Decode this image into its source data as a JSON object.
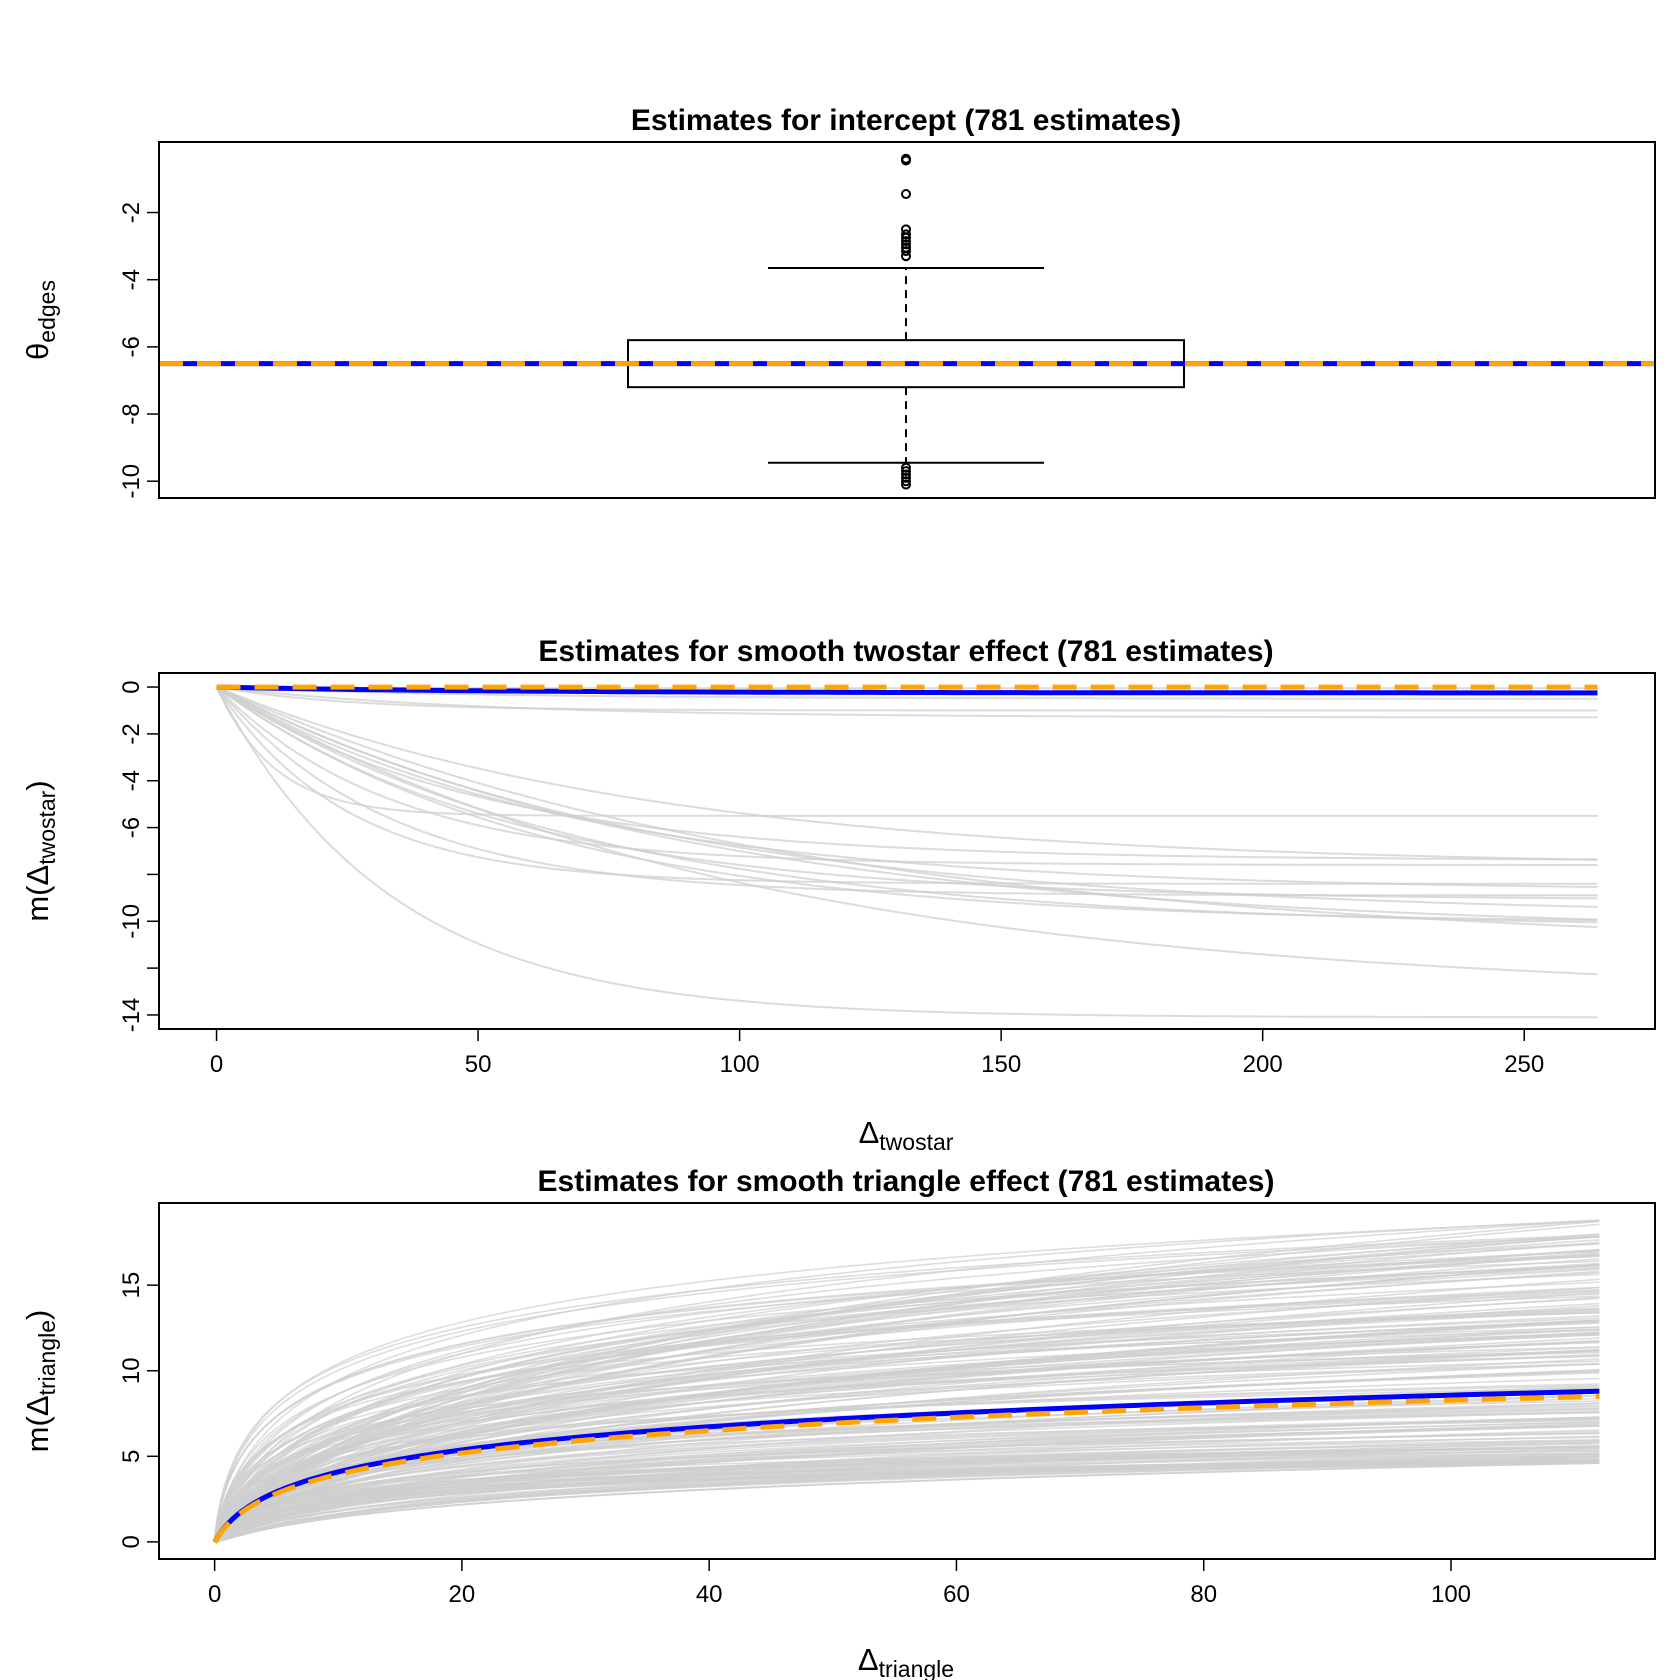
{
  "colors": {
    "mean_line": "#0000ff",
    "true_line": "#ffa500",
    "estimate_lines": "#cfcfcf",
    "box": "#000000"
  },
  "chart_data": [
    {
      "type": "box",
      "title": "Estimates for intercept (781 estimates)",
      "ylabel_main": "θ",
      "ylabel_sub": "edges",
      "ylim": [
        -10.5,
        0.1
      ],
      "yticks": [
        "-2",
        "-4",
        "-6",
        "-8",
        "-10"
      ],
      "box": {
        "whisker_low": -9.45,
        "q1": -7.2,
        "median": -6.5,
        "q3": -5.8,
        "whisker_high": -3.65,
        "outliers_high": [
          -0.4,
          -0.45,
          -1.45,
          -2.5,
          -2.65,
          -2.75,
          -2.85,
          -2.95,
          -3.05,
          -3.15,
          -3.3
        ],
        "outliers_low": [
          -9.6,
          -9.7,
          -9.8,
          -9.9,
          -10.0,
          -10.1
        ]
      },
      "mean_line": -6.5,
      "true_line": -6.5
    },
    {
      "type": "line",
      "title": "Estimates for smooth twostar effect (781 estimates)",
      "xlabel_main": "Δ",
      "xlabel_sub": "twostar",
      "ylabel_pre": "m(",
      "ylabel_main": "Δ",
      "ylabel_sub": "twostar",
      "ylabel_post": ")",
      "xlim": [
        -11,
        275
      ],
      "ylim": [
        -14.6,
        0.6
      ],
      "x_max": 264,
      "xticks": [
        "0",
        "50",
        "100",
        "150",
        "200",
        "250"
      ],
      "yticks": [
        "0",
        "-2",
        "-4",
        "-6",
        "",
        "-10",
        "",
        "-14"
      ],
      "curves_limits": [
        -0.05,
        -0.2,
        -0.5,
        -1.0,
        -1.3,
        -5.5,
        -7.4,
        -7.6,
        -7.7,
        -8.4,
        -8.7,
        -8.9,
        -9.1,
        -9.8,
        -10.1,
        -10.3,
        -10.5,
        -11.3,
        -13.2,
        -14.1
      ],
      "curves_rates": [
        0.03,
        0.05,
        0.02,
        0.04,
        0.02,
        0.09,
        0.02,
        0.03,
        0.012,
        0.04,
        0.015,
        0.03,
        0.018,
        0.012,
        0.016,
        0.014,
        0.011,
        0.009,
        0.01,
        0.03
      ],
      "mean_limit": -0.25,
      "mean_rate": 0.02,
      "true_limit": 0.0,
      "true_rate": 0.02
    },
    {
      "type": "line",
      "title": "Estimates for smooth triangle effect (781 estimates)",
      "xlabel_main": "Δ",
      "xlabel_sub": "triangle",
      "ylabel_pre": "m(",
      "ylabel_main": "Δ",
      "ylabel_sub": "triangle",
      "ylabel_post": ")",
      "xlim": [
        -4.5,
        116.5
      ],
      "ylim": [
        -1,
        19.8
      ],
      "x_max": 112,
      "xticks": [
        "0",
        "20",
        "40",
        "60",
        "80",
        "100"
      ],
      "yticks": [
        "0",
        "5",
        "10",
        "15"
      ],
      "curves_final_min": 4.6,
      "curves_final_max": 18.9,
      "curves_count": 200,
      "mean_final": 8.8,
      "true_final": 8.5
    }
  ]
}
